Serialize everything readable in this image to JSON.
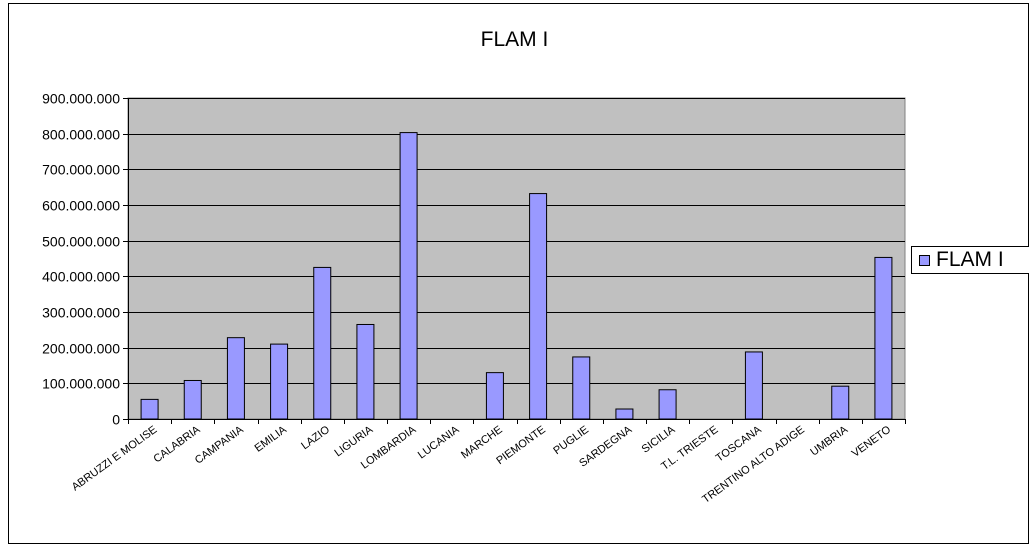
{
  "chart_data": {
    "type": "bar",
    "title": "FLAM I",
    "categories": [
      "ABRUZZI E MOLISE",
      "CALABRIA",
      "CAMPANIA",
      "EMILIA",
      "LAZIO",
      "LIGURIA",
      "LOMBARDIA",
      "LUCANIA",
      "MARCHE",
      "PIEMONTE",
      "PUGLIE",
      "SARDEGNA",
      "SICILIA",
      "T.L. TRIESTE",
      "TOSCANA",
      "TRENTINO ALTO ADIGE",
      "UMBRIA",
      "VENETO"
    ],
    "series": [
      {
        "name": "FLAM I",
        "values": [
          55000000,
          108000000,
          228000000,
          210000000,
          425000000,
          265000000,
          803000000,
          0,
          130000000,
          632000000,
          174000000,
          28000000,
          82000000,
          0,
          188000000,
          0,
          92000000,
          453000000
        ]
      }
    ],
    "ylim": [
      0,
      900000000
    ],
    "yticks": [
      0,
      100000000,
      200000000,
      300000000,
      400000000,
      500000000,
      600000000,
      700000000,
      800000000,
      900000000
    ],
    "ytick_labels": [
      "0",
      "100.000.000",
      "200.000.000",
      "300.000.000",
      "400.000.000",
      "500.000.000",
      "600.000.000",
      "700.000.000",
      "800.000.000",
      "900.000.000"
    ],
    "grid": true,
    "legend_position": "right",
    "colors": {
      "bar": "#9999ff",
      "plot_background": "#c0c0c0",
      "outline": "#000000"
    }
  }
}
